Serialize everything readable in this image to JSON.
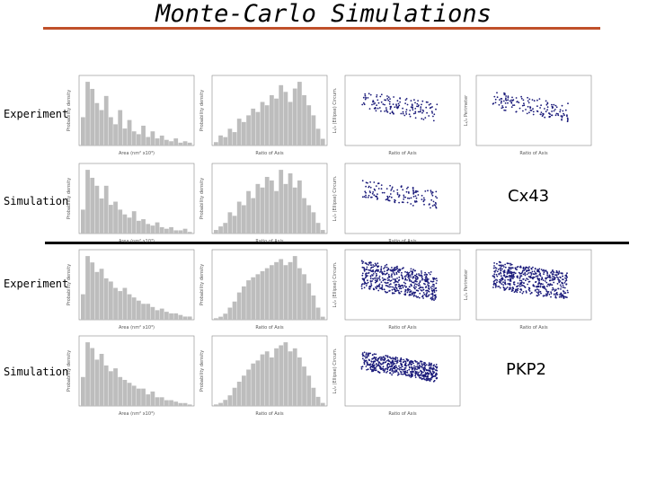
{
  "title": "Monte-Carlo Simulations",
  "row_labels": [
    "Experiment",
    "Simulation",
    "Experiment",
    "Simulation"
  ],
  "gene_labels": [
    "Cx43",
    "PKP2"
  ],
  "colors": {
    "title_rule": "#c0502a",
    "bar": "#bdbdbd",
    "point": "#1a1a7a",
    "divider": "#000000"
  },
  "axis_text": {
    "area_xlabel": "Area (nm² x10³)",
    "ratio_xlabel": "Ratio of Axis",
    "prob_ylabel": "Probability density",
    "ellipse_ylabel": "L₁/₂ (Ellipse) Circum.",
    "perim_ylabel": "L₁/₂ Perimeter"
  },
  "chart_data": [
    {
      "type": "bar",
      "panel": "cx43-experiment-area",
      "values": [
        0.02,
        0.045,
        0.04,
        0.03,
        0.025,
        0.035,
        0.02,
        0.015,
        0.025,
        0.012,
        0.018,
        0.01,
        0.008,
        0.014,
        0.006,
        0.01,
        0.005,
        0.007,
        0.004,
        0.003,
        0.005,
        0.002,
        0.003,
        0.002
      ]
    },
    {
      "type": "bar",
      "panel": "cx43-experiment-ratio",
      "values": [
        0.1,
        0.3,
        0.25,
        0.5,
        0.4,
        0.8,
        0.7,
        0.9,
        1.1,
        1.0,
        1.3,
        1.2,
        1.5,
        1.4,
        1.8,
        1.6,
        1.3,
        1.7,
        1.9,
        1.5,
        1.2,
        0.9,
        0.5,
        0.2
      ]
    },
    {
      "type": "scatter",
      "panel": "cx43-experiment-ellipse",
      "n": 140,
      "spread": 0.13
    },
    {
      "type": "scatter",
      "panel": "cx43-experiment-perimeter",
      "n": 140,
      "spread": 0.13
    },
    {
      "type": "bar",
      "panel": "cx43-simulation-area",
      "values": [
        0.015,
        0.04,
        0.035,
        0.03,
        0.022,
        0.03,
        0.018,
        0.02,
        0.015,
        0.012,
        0.01,
        0.014,
        0.008,
        0.009,
        0.006,
        0.005,
        0.007,
        0.004,
        0.003,
        0.004,
        0.002,
        0.002,
        0.003,
        0.001
      ]
    },
    {
      "type": "bar",
      "panel": "cx43-simulation-ratio",
      "values": [
        0.1,
        0.2,
        0.3,
        0.6,
        0.5,
        0.9,
        0.8,
        1.2,
        1.0,
        1.4,
        1.3,
        1.6,
        1.5,
        1.2,
        1.8,
        1.4,
        1.7,
        1.3,
        1.5,
        1.0,
        0.8,
        0.6,
        0.3,
        0.1
      ]
    },
    {
      "type": "scatter",
      "panel": "cx43-simulation-ellipse",
      "n": 140,
      "spread": 0.13
    },
    {
      "type": "bar",
      "panel": "pkp2-experiment-area",
      "values": [
        0.08,
        0.2,
        0.18,
        0.15,
        0.16,
        0.13,
        0.12,
        0.1,
        0.09,
        0.1,
        0.08,
        0.07,
        0.06,
        0.05,
        0.05,
        0.04,
        0.03,
        0.035,
        0.025,
        0.02,
        0.02,
        0.015,
        0.01,
        0.01
      ]
    },
    {
      "type": "bar",
      "panel": "pkp2-experiment-ratio",
      "values": [
        0.05,
        0.1,
        0.2,
        0.4,
        0.6,
        0.9,
        1.1,
        1.3,
        1.4,
        1.5,
        1.6,
        1.7,
        1.8,
        1.9,
        2.0,
        1.8,
        1.9,
        2.1,
        1.7,
        1.5,
        1.2,
        0.8,
        0.4,
        0.1
      ]
    },
    {
      "type": "scatter",
      "panel": "pkp2-experiment-ellipse",
      "n": 520,
      "spread": 0.2
    },
    {
      "type": "scatter",
      "panel": "pkp2-experiment-perimeter",
      "n": 520,
      "spread": 0.2
    },
    {
      "type": "bar",
      "panel": "pkp2-simulation-area",
      "values": [
        0.1,
        0.22,
        0.2,
        0.16,
        0.18,
        0.14,
        0.12,
        0.13,
        0.1,
        0.09,
        0.08,
        0.07,
        0.06,
        0.06,
        0.04,
        0.05,
        0.03,
        0.03,
        0.02,
        0.02,
        0.015,
        0.01,
        0.01,
        0.005
      ]
    },
    {
      "type": "bar",
      "panel": "pkp2-simulation-ratio",
      "values": [
        0.05,
        0.1,
        0.2,
        0.35,
        0.6,
        0.8,
        1.0,
        1.2,
        1.4,
        1.5,
        1.7,
        1.8,
        1.6,
        1.9,
        2.0,
        2.1,
        1.8,
        1.9,
        1.6,
        1.3,
        1.0,
        0.6,
        0.3,
        0.1
      ]
    },
    {
      "type": "scatter",
      "panel": "pkp2-simulation-ellipse",
      "n": 520,
      "spread": 0.13
    }
  ]
}
